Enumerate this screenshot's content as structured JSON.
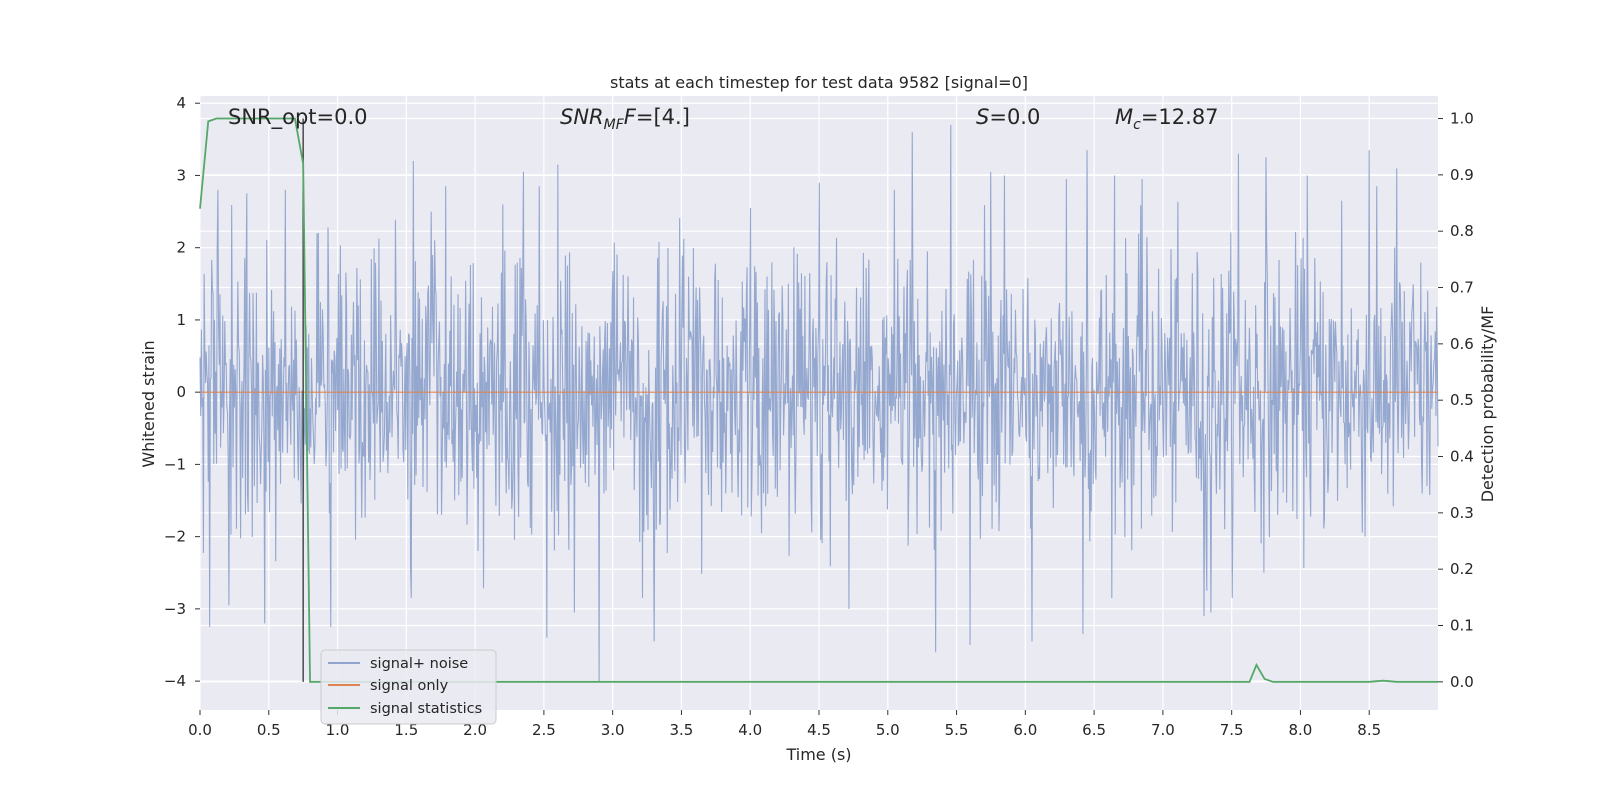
{
  "chart_data": {
    "type": "line",
    "title": "stats at each timestep for test data 9582 [signal=0]",
    "xlabel": "Time (s)",
    "ylabel": "Whitened strain",
    "y2label": "Detection probability/MF",
    "xlim": [
      0.0,
      9.0
    ],
    "ylim": [
      -4.4,
      4.1
    ],
    "y2lim": [
      -0.05,
      1.04
    ],
    "xticks": [
      "0.0",
      "0.5",
      "1.0",
      "1.5",
      "2.0",
      "2.5",
      "3.0",
      "3.5",
      "4.0",
      "4.5",
      "5.0",
      "5.5",
      "6.0",
      "6.5",
      "7.0",
      "7.5",
      "8.0",
      "8.5"
    ],
    "yticks": [
      "4",
      "3",
      "2",
      "1",
      "0",
      "−1",
      "−2",
      "−3",
      "−4"
    ],
    "y2ticks": [
      "1.0",
      "0.9",
      "0.8",
      "0.7",
      "0.6",
      "0.5",
      "0.4",
      "0.3",
      "0.2",
      "0.1",
      "0.0"
    ],
    "grid": true,
    "legend_position": "lower-left",
    "annotations": {
      "snr_opt": "SNR_opt=0.0",
      "snr_mf_main": "SNR",
      "snr_mf_sub": "MF",
      "snr_mf_value": "=[4.]",
      "s_main": "S",
      "s_value": "=0.0",
      "mc_main": "M",
      "mc_sub": "c",
      "mc_value": "=12.87"
    },
    "vline_x": 0.75,
    "series": [
      {
        "name": "signal+ noise",
        "color": "#8fa3cc",
        "axis": "left",
        "envelope": "noise ~ N(0,1), |peaks| up to about 3.6",
        "peaks_x": [
          0.07,
          0.13,
          0.21,
          0.34,
          0.47,
          0.62,
          0.85,
          0.95,
          1.55,
          1.68,
          2.2,
          2.35,
          2.52,
          2.6,
          2.72,
          2.9,
          3.3,
          4.0,
          4.5,
          4.72,
          5.05,
          5.18,
          5.35,
          5.46,
          5.6,
          5.75,
          5.85,
          6.05,
          6.3,
          6.42,
          6.45,
          6.65,
          6.85,
          7.3,
          7.35,
          7.55,
          7.75,
          8.05,
          8.3,
          8.5,
          8.7
        ],
        "peaks_y": [
          -3.25,
          2.8,
          -2.95,
          2.75,
          -3.2,
          2.8,
          2.2,
          -3.25,
          3.2,
          2.5,
          2.6,
          3.05,
          -3.4,
          3.15,
          -3.05,
          -4.0,
          -3.45,
          2.55,
          2.9,
          -3.0,
          2.8,
          3.6,
          -3.6,
          3.7,
          -3.5,
          3.05,
          3.0,
          -3.45,
          2.95,
          -3.35,
          3.35,
          3.0,
          2.95,
          -3.1,
          -3.05,
          3.3,
          3.25,
          3.0,
          2.65,
          3.35,
          3.1
        ]
      },
      {
        "name": "signal only",
        "color": "#dd8452",
        "axis": "left",
        "x": [
          0.0,
          9.0
        ],
        "y": [
          0.0,
          0.0
        ]
      },
      {
        "name": "signal statistics",
        "color": "#55a868",
        "axis": "right",
        "x": [
          0.0,
          0.06,
          0.12,
          0.18,
          0.25,
          0.4,
          0.55,
          0.65,
          0.69,
          0.75,
          0.8,
          0.85,
          1.0,
          2.0,
          3.0,
          4.0,
          5.0,
          6.0,
          7.0,
          7.5,
          7.63,
          7.68,
          7.74,
          7.8,
          8.0,
          8.5,
          8.6,
          8.7,
          9.0
        ],
        "y": [
          0.84,
          0.995,
          1.0,
          1.0,
          1.0,
          1.0,
          1.0,
          1.0,
          1.0,
          0.92,
          0.0,
          0.0,
          0.0,
          0.0,
          0.0,
          0.0,
          0.0,
          0.0,
          0.0,
          0.0,
          0.0,
          0.03,
          0.005,
          0.0,
          0.0,
          0.0,
          0.002,
          0.0,
          0.0
        ]
      }
    ]
  }
}
